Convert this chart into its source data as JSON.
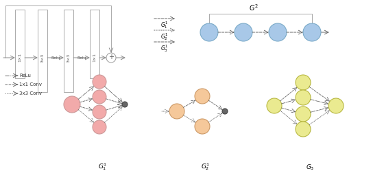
{
  "fig_width": 5.6,
  "fig_height": 2.62,
  "dpi": 100,
  "pink_color": "#F2AAAA",
  "blue_color": "#A8C8E8",
  "peach_color": "#F5C89A",
  "yellow_color": "#EAEA90",
  "bg_color": "#ffffff",
  "edge_gray": "#999999",
  "arrow_gray": "#666666",
  "labels": {
    "G2_top": "$G^2$",
    "G1_1": "$G_1^1$",
    "G2_1": "$G_2^1$",
    "G3_1": "$G_3^1$",
    "G1_bot": "$G_1^1$",
    "G2_bot": "$G_2^1$",
    "G3_bot": "$G_3$",
    "relu": "ReLu",
    "conv1x1": "1x1 Conv",
    "conv3x3": "3x3 Conv"
  }
}
